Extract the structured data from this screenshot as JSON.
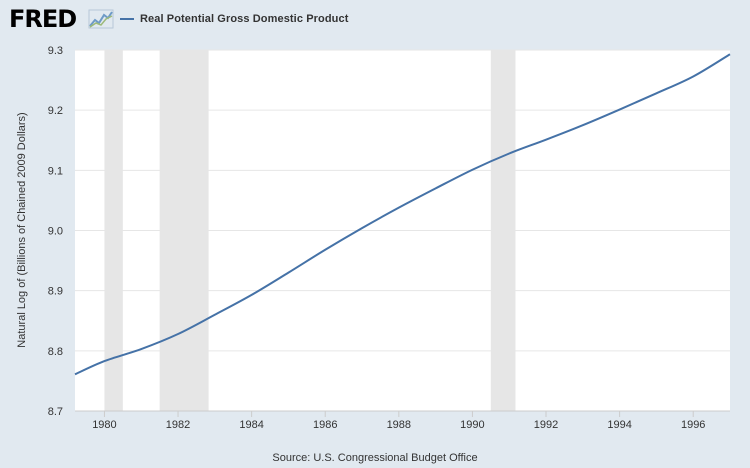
{
  "header": {
    "logo_text": "FRED",
    "legend_label": "Real Potential Gross Domestic Product",
    "series_color": "#4572a7"
  },
  "source_text": "Source: U.S. Congressional Budget Office",
  "chart_data": {
    "type": "line",
    "title": "",
    "xlabel": "",
    "ylabel": "Natural Log of (Billions of Chained 2009 Dollars)",
    "xlim": [
      1979.2,
      1997.0
    ],
    "ylim": [
      8.7,
      9.3
    ],
    "yticks": [
      "8.7",
      "8.8",
      "8.9",
      "9.0",
      "9.1",
      "9.2",
      "9.3"
    ],
    "xticks": [
      "1980",
      "1982",
      "1984",
      "1986",
      "1988",
      "1990",
      "1992",
      "1994",
      "1996"
    ],
    "recessions": [
      {
        "start": 1980.0,
        "end": 1980.5
      },
      {
        "start": 1981.5,
        "end": 1982.83
      },
      {
        "start": 1990.5,
        "end": 1991.17
      }
    ],
    "series": [
      {
        "name": "Real Potential Gross Domestic Product",
        "x": [
          1979.2,
          1980,
          1981,
          1982,
          1983,
          1984,
          1985,
          1986,
          1987,
          1988,
          1989,
          1990,
          1991,
          1992,
          1993,
          1994,
          1995,
          1996,
          1997
        ],
        "y": [
          8.761,
          8.783,
          8.803,
          8.828,
          8.86,
          8.893,
          8.93,
          8.968,
          9.004,
          9.038,
          9.07,
          9.101,
          9.128,
          9.151,
          9.175,
          9.201,
          9.228,
          9.256,
          9.293
        ]
      }
    ]
  }
}
